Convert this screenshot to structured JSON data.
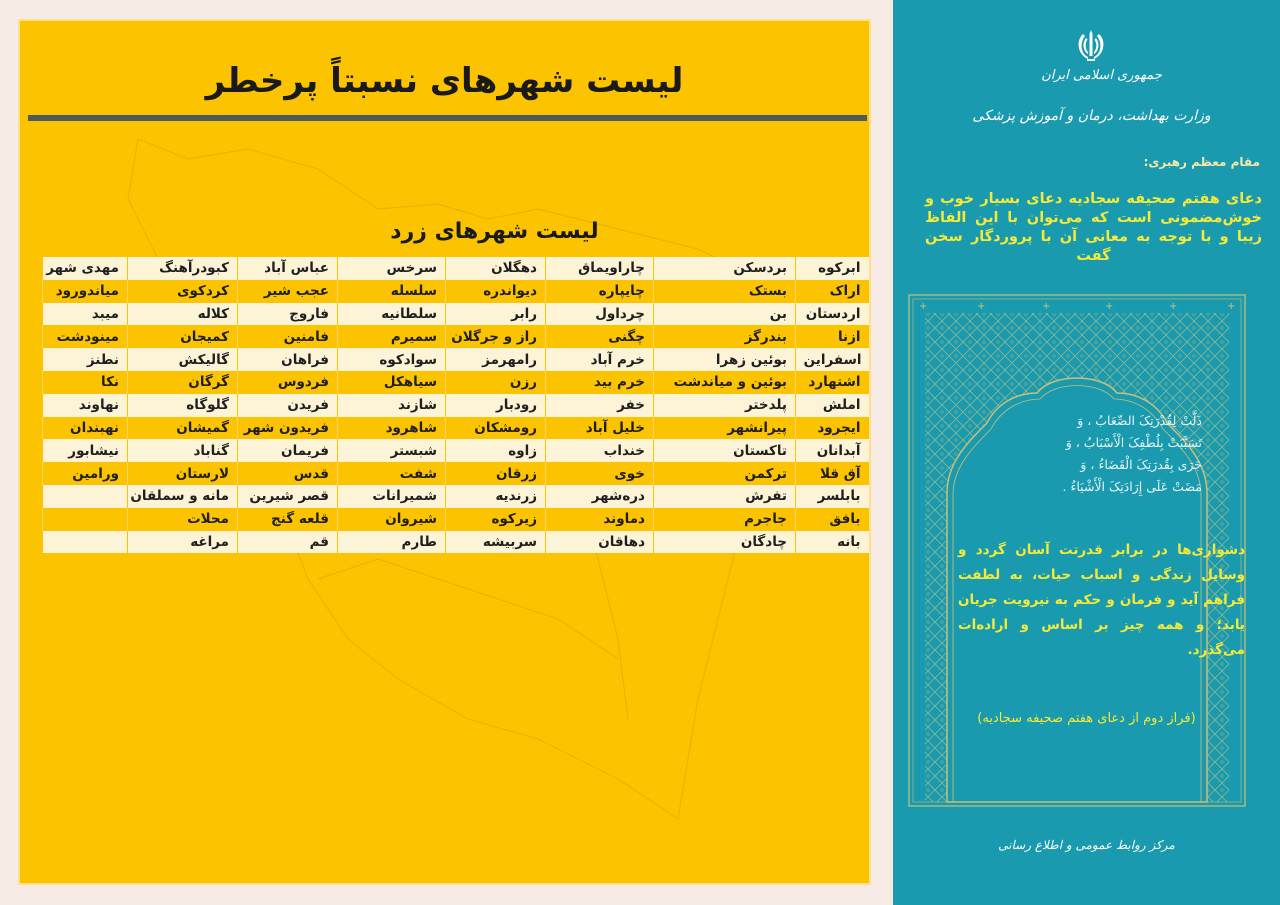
{
  "left_panel": {
    "title": "لیست شهرهای نسبتاً پرخطر",
    "subtitle": "لیست شهرهای زرد",
    "colors": {
      "background": "#fcc400",
      "rule": "#4d5b5f",
      "odd_row": "#fdf6e1"
    },
    "table": {
      "rows": [
        [
          "ابرکوه",
          "بردسکن",
          "چاراویماق",
          "دهگلان",
          "سرخس",
          "عباس آباد",
          "کبودرآهنگ",
          "مهدی شهر"
        ],
        [
          "اراک",
          "بستک",
          "چایپاره",
          "دیواندره",
          "سلسله",
          "عجب شیر",
          "کردکوی",
          "میاندورود"
        ],
        [
          "اردستان",
          "بن",
          "چرداول",
          "رابر",
          "سلطانیه",
          "فاروج",
          "کلاله",
          "میبد"
        ],
        [
          "ازنا",
          "بندرگز",
          "چگنی",
          "راز و جرگلان",
          "سمیرم",
          "فامنین",
          "کمیجان",
          "مینودشت"
        ],
        [
          "اسفراین",
          "بوئین زهرا",
          "خرم آباد",
          "رامهرمز",
          "سوادکوه",
          "فراهان",
          "گالیکش",
          "نطنز"
        ],
        [
          "اشتهارد",
          "بوئین و میاندشت",
          "خرم بید",
          "رزن",
          "سیاهکل",
          "فردوس",
          "گرگان",
          "نکا"
        ],
        [
          "املش",
          "پلدختر",
          "خفر",
          "رودبار",
          "شازند",
          "فریدن",
          "گلوگاه",
          "نهاوند"
        ],
        [
          "ایجرود",
          "پیرانشهر",
          "خلیل آباد",
          "رومشکان",
          "شاهرود",
          "فریدون شهر",
          "گمیشان",
          "نهبندان"
        ],
        [
          "آبدانان",
          "تاکستان",
          "خنداب",
          "زاوه",
          "شبستر",
          "فریمان",
          "گناباد",
          "نیشابور"
        ],
        [
          "آق قلا",
          "ترکمن",
          "خوی",
          "زرقان",
          "شفت",
          "قدس",
          "لارستان",
          "ورامین"
        ],
        [
          "بابلسر",
          "تفرش",
          "دره‌شهر",
          "زرندیه",
          "شمیرانات",
          "قصر شیرین",
          "مانه و سملقان",
          ""
        ],
        [
          "بافق",
          "جاجرم",
          "دماوند",
          "زیرکوه",
          "شیروان",
          "قلعه گنج",
          "محلات",
          ""
        ],
        [
          "بانه",
          "چادگان",
          "دهاقان",
          "سربیشه",
          "طارم",
          "قم",
          "مراغه",
          ""
        ]
      ]
    }
  },
  "right_panel": {
    "colors": {
      "background": "#1a9aae",
      "accent_text": "#f4ea3a",
      "frame": "#c9c07a"
    },
    "emblem_icon": "iran-emblem-icon",
    "republic_name": "جمهوری اسلامی ایران",
    "ministry_name": "وزارت بهداشت، درمان و آموزش پزشکی",
    "leader_label": "مقام معظم رهبری:",
    "intro_text": "دعای هفتم صحیفه سجادیه دعای بسیار خوب و خوش‌مضمونی است که می‌توان با این الفاظ زیبا و با توجه به معانی آن با پروردگار سخن گفت",
    "arabic_lines": [
      "ذَلَّتْ لِقُدْرَتِکَ الصِّعَابُ ، وَ",
      "تَسَبَّبَتْ بِلُطْفِکَ الْأَسْبَابُ ، وَ",
      "جَرَى بِقُدرَتِکَ الْقَضَاءُ ، وَ",
      "مَضَتْ عَلَى إِرَادَتِکَ الْأَشْيَاءُ ."
    ],
    "translation": "دشواری‌ها در برابر قدرتت آسان گردد و وسایل زندگی و اسباب حیات، به لطفت فراهم آید و فرمان و حکم به نیرویت جریان یابد؛ و همه چیز بر اساس و اراده‌ات می‌گذرد.",
    "source_note": "(فراز دوم از دعای هفتم صحیفه سجادیه)",
    "footer_org": "مرکز روابط عمومی و اطلاع رسانی"
  }
}
